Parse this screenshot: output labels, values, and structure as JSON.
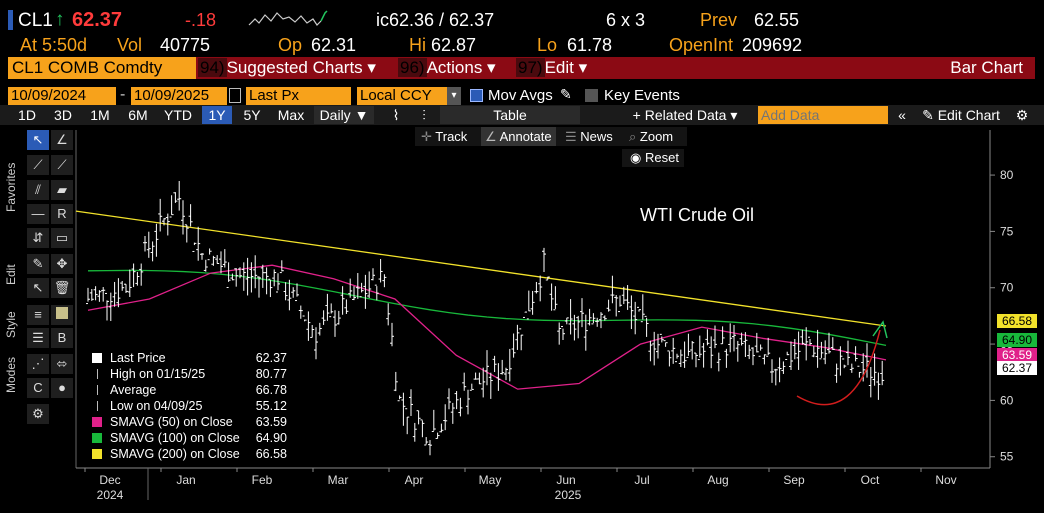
{
  "ticker": {
    "symbol": "CL1",
    "arrow": "↑",
    "price": "62.37",
    "change": "-.18",
    "bid_ask": "ic62.36 / 62.37",
    "size": "6 x 3",
    "prev_label": "Prev",
    "prev_val": "62.55"
  },
  "line2": {
    "at": "At 5:50d",
    "vol_label": "Vol",
    "vol": "40775",
    "op_label": "Op",
    "op": "62.31",
    "hi_label": "Hi",
    "hi": "62.87",
    "lo_label": "Lo",
    "lo": "61.78",
    "oi_label": "OpenInt",
    "oi": "209692"
  },
  "command_bar": {
    "security": "CL1 COMB Comdty",
    "items": [
      {
        "num": "94)",
        "label": "Suggested Charts ▾"
      },
      {
        "num": "96)",
        "label": "Actions ▾"
      },
      {
        "num": "97)",
        "label": "Edit ▾"
      }
    ],
    "chart_type": "Bar Chart"
  },
  "params": {
    "start": "10/09/2024",
    "end": "10/09/2025",
    "field": "Last Px",
    "currency": "Local CCY",
    "mov_avgs": "Mov Avgs",
    "key_events": "Key Events"
  },
  "periods": [
    "1D",
    "3D",
    "1M",
    "6M",
    "YTD",
    "1Y",
    "5Y",
    "Max"
  ],
  "selected_period": "1Y",
  "toolbar": {
    "daily": "Daily ▼",
    "table": "Table",
    "related": "+ Related Data ▾",
    "add_data_placeholder": "Add Data",
    "edit_chart": "Edit Chart"
  },
  "sub_toolbar": {
    "track": "Track",
    "annotate": "Annotate",
    "news": "News",
    "zoom": "Zoom",
    "reset": "Reset"
  },
  "side_tabs": {
    "favorites": "Favorites",
    "edit": "Edit",
    "style": "Style",
    "modes": "Modes"
  },
  "annotation_text": "WTI Crude Oil",
  "legend": [
    {
      "label": "Last Price",
      "value": "62.37",
      "swatch": "#ffffff"
    },
    {
      "label": "High on 01/15/25",
      "value": "80.77",
      "swatch": "none"
    },
    {
      "label": "Average",
      "value": "66.78",
      "swatch": "none"
    },
    {
      "label": "Low on 04/09/25",
      "value": "55.12",
      "swatch": "none"
    },
    {
      "label": "SMAVG (50)  on Close",
      "value": "63.59",
      "swatch": "#e0218a"
    },
    {
      "label": "SMAVG (100)  on Close",
      "value": "64.90",
      "swatch": "#18b83b"
    },
    {
      "label": "SMAVG (200)  on Close",
      "value": "66.58",
      "swatch": "#f2e22b"
    }
  ],
  "colors": {
    "amber": "#f7a21b",
    "red_bar": "#8b0a14",
    "up": "#22c55e",
    "down": "#ff3b3b",
    "sma50": "#e0218a",
    "sma100": "#18b83b",
    "sma200": "#f2e22b",
    "selected": "#2b5bb6"
  },
  "chart_data": {
    "type": "bar",
    "title": "WTI Crude Oil",
    "x_months": [
      "Dec",
      "Jan",
      "Feb",
      "Mar",
      "Apr",
      "May",
      "Jun",
      "Jul",
      "Aug",
      "Sep",
      "Oct",
      "Nov"
    ],
    "x_years": [
      "2024",
      "2025"
    ],
    "y_ticks": [
      55,
      60,
      65,
      70,
      75,
      80
    ],
    "ylim": [
      54,
      84
    ],
    "price_tags": [
      {
        "value": "66.58",
        "color": "#f2e22b"
      },
      {
        "value": "64.90",
        "color": "#18b83b"
      },
      {
        "value": "63.59",
        "color": "#e0218a"
      },
      {
        "value": "62.37",
        "color": "#ffffff"
      }
    ],
    "close_series_month_index": [
      0,
      0.5,
      1,
      1.2,
      1.5,
      2,
      2.5,
      3,
      3.5,
      3.9,
      4.1,
      4.5,
      5,
      5.5,
      6,
      6.2,
      6.5,
      7,
      7.5,
      7.9,
      8.5,
      9,
      9.5,
      10,
      10.5
    ],
    "close_series": [
      69,
      70,
      76,
      78,
      73,
      71,
      71,
      66,
      69,
      71,
      60,
      57,
      61,
      63,
      72,
      66,
      67,
      69,
      65,
      64,
      65,
      63,
      65,
      63,
      62.4
    ],
    "sma200_start": 76.8,
    "sma200_end": 66.6,
    "sma100_start": 71.5,
    "sma100_end": 64.9,
    "sma50_points": [
      68,
      69,
      71.3,
      72,
      70.8,
      69,
      64,
      61,
      61.5,
      65,
      66.5,
      65.5,
      64.7,
      63.6
    ]
  }
}
